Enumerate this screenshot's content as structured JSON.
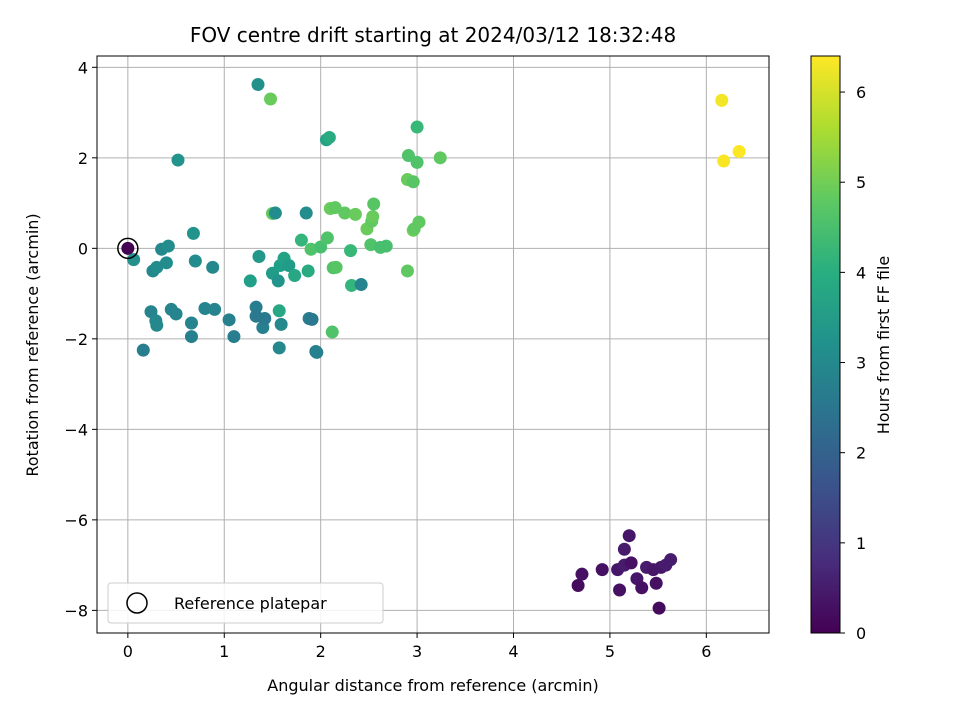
{
  "chart_data": {
    "type": "scatter",
    "title": "FOV centre drift starting at 2024/03/12 18:32:48",
    "xlabel": "Angular distance from reference (arcmin)",
    "ylabel": "Rotation from reference (arcmin)",
    "xlim": [
      -0.32,
      6.65
    ],
    "ylim": [
      -8.5,
      4.25
    ],
    "xticks": [
      0,
      1,
      2,
      3,
      4,
      5,
      6
    ],
    "xtick_labels": [
      "0",
      "1",
      "2",
      "3",
      "4",
      "5",
      "6"
    ],
    "yticks": [
      -8,
      -6,
      -4,
      -2,
      0,
      2,
      4
    ],
    "ytick_labels": [
      "−8",
      "−6",
      "−4",
      "−2",
      "0",
      "2",
      "4"
    ],
    "grid": true,
    "colorbar": {
      "label": "Hours from first FF file",
      "colormap": "viridis",
      "range": [
        0,
        6.4
      ],
      "ticks": [
        0,
        1,
        2,
        3,
        4,
        5,
        6
      ],
      "tick_labels": [
        "0",
        "1",
        "2",
        "3",
        "4",
        "5",
        "6"
      ]
    },
    "legend": {
      "placement": "lower-left",
      "entries": [
        "Reference platepar"
      ]
    },
    "reference_point": {
      "x": 0,
      "y": 0,
      "c": 0.0
    },
    "series": [
      {
        "points": [
          {
            "x": 4.67,
            "y": -7.45,
            "c": 0.2
          },
          {
            "x": 4.71,
            "y": -7.2,
            "c": 0.3
          },
          {
            "x": 4.92,
            "y": -7.1,
            "c": 0.3
          },
          {
            "x": 5.08,
            "y": -7.1,
            "c": 0.4
          },
          {
            "x": 5.1,
            "y": -7.55,
            "c": 0.3
          },
          {
            "x": 5.15,
            "y": -7.0,
            "c": 0.5
          },
          {
            "x": 5.15,
            "y": -6.65,
            "c": 0.5
          },
          {
            "x": 5.2,
            "y": -6.35,
            "c": 0.4
          },
          {
            "x": 5.22,
            "y": -6.95,
            "c": 0.3
          },
          {
            "x": 5.28,
            "y": -7.3,
            "c": 0.4
          },
          {
            "x": 5.33,
            "y": -7.5,
            "c": 0.3
          },
          {
            "x": 5.38,
            "y": -7.05,
            "c": 0.5
          },
          {
            "x": 5.45,
            "y": -7.1,
            "c": 0.4
          },
          {
            "x": 5.48,
            "y": -7.4,
            "c": 0.3
          },
          {
            "x": 5.51,
            "y": -7.95,
            "c": 0.2
          },
          {
            "x": 5.53,
            "y": -7.05,
            "c": 0.4
          },
          {
            "x": 5.58,
            "y": -7.0,
            "c": 0.5
          },
          {
            "x": 5.63,
            "y": -6.88,
            "c": 0.5
          },
          {
            "x": 0.06,
            "y": -0.25,
            "c": 3.2
          },
          {
            "x": 0.16,
            "y": -2.25,
            "c": 2.7
          },
          {
            "x": 0.24,
            "y": -1.4,
            "c": 2.9
          },
          {
            "x": 0.26,
            "y": -0.5,
            "c": 3.0
          },
          {
            "x": 0.3,
            "y": -0.42,
            "c": 3.1
          },
          {
            "x": 0.29,
            "y": -1.6,
            "c": 3.0
          },
          {
            "x": 0.3,
            "y": -1.7,
            "c": 3.0
          },
          {
            "x": 0.35,
            "y": -0.02,
            "c": 3.0
          },
          {
            "x": 0.4,
            "y": -0.32,
            "c": 3.1
          },
          {
            "x": 0.42,
            "y": 0.05,
            "c": 3.1
          },
          {
            "x": 0.45,
            "y": -1.35,
            "c": 2.9
          },
          {
            "x": 0.5,
            "y": -1.45,
            "c": 2.9
          },
          {
            "x": 0.52,
            "y": 1.95,
            "c": 3.3
          },
          {
            "x": 0.66,
            "y": -1.65,
            "c": 2.9
          },
          {
            "x": 0.66,
            "y": -1.95,
            "c": 2.8
          },
          {
            "x": 0.68,
            "y": 0.33,
            "c": 3.3
          },
          {
            "x": 0.7,
            "y": -0.28,
            "c": 3.1
          },
          {
            "x": 0.8,
            "y": -1.33,
            "c": 2.9
          },
          {
            "x": 0.88,
            "y": -0.42,
            "c": 3.0
          },
          {
            "x": 0.9,
            "y": -1.35,
            "c": 2.9
          },
          {
            "x": 1.05,
            "y": -1.58,
            "c": 2.8
          },
          {
            "x": 1.1,
            "y": -1.95,
            "c": 2.7
          },
          {
            "x": 1.27,
            "y": -0.72,
            "c": 3.6
          },
          {
            "x": 1.33,
            "y": -1.3,
            "c": 2.7
          },
          {
            "x": 1.33,
            "y": -1.5,
            "c": 2.6
          },
          {
            "x": 1.35,
            "y": 3.62,
            "c": 3.2
          },
          {
            "x": 1.36,
            "y": -0.18,
            "c": 3.4
          },
          {
            "x": 1.4,
            "y": -1.75,
            "c": 2.8
          },
          {
            "x": 1.42,
            "y": -1.55,
            "c": 2.6
          },
          {
            "x": 1.48,
            "y": 3.3,
            "c": 4.9
          },
          {
            "x": 1.5,
            "y": 0.77,
            "c": 4.8
          },
          {
            "x": 1.5,
            "y": -0.55,
            "c": 3.5
          },
          {
            "x": 1.53,
            "y": 0.78,
            "c": 3.1
          },
          {
            "x": 1.56,
            "y": -0.72,
            "c": 3.3
          },
          {
            "x": 1.57,
            "y": -1.38,
            "c": 3.8
          },
          {
            "x": 1.57,
            "y": -2.2,
            "c": 3.0
          },
          {
            "x": 1.58,
            "y": -0.38,
            "c": 3.6
          },
          {
            "x": 1.59,
            "y": -1.68,
            "c": 3.0
          },
          {
            "x": 1.62,
            "y": -0.22,
            "c": 3.7
          },
          {
            "x": 1.67,
            "y": -0.38,
            "c": 3.5
          },
          {
            "x": 1.73,
            "y": -0.6,
            "c": 3.8
          },
          {
            "x": 1.8,
            "y": 0.18,
            "c": 4.2
          },
          {
            "x": 1.85,
            "y": 0.78,
            "c": 3.1
          },
          {
            "x": 1.87,
            "y": -0.5,
            "c": 3.9
          },
          {
            "x": 1.88,
            "y": -1.55,
            "c": 2.7
          },
          {
            "x": 1.91,
            "y": -1.57,
            "c": 2.6
          },
          {
            "x": 1.9,
            "y": -0.02,
            "c": 4.6
          },
          {
            "x": 1.95,
            "y": -2.28,
            "c": 2.7
          },
          {
            "x": 1.96,
            "y": -2.3,
            "c": 2.8
          },
          {
            "x": 2.0,
            "y": 0.03,
            "c": 4.5
          },
          {
            "x": 2.06,
            "y": 2.4,
            "c": 3.7
          },
          {
            "x": 2.07,
            "y": 0.23,
            "c": 4.6
          },
          {
            "x": 2.09,
            "y": 2.45,
            "c": 3.9
          },
          {
            "x": 2.1,
            "y": 0.88,
            "c": 4.9
          },
          {
            "x": 2.12,
            "y": -1.85,
            "c": 4.6
          },
          {
            "x": 2.13,
            "y": -0.43,
            "c": 4.6
          },
          {
            "x": 2.15,
            "y": 0.9,
            "c": 4.8
          },
          {
            "x": 2.16,
            "y": -0.42,
            "c": 4.7
          },
          {
            "x": 2.25,
            "y": 0.78,
            "c": 4.8
          },
          {
            "x": 2.31,
            "y": -0.05,
            "c": 4.3
          },
          {
            "x": 2.32,
            "y": -0.82,
            "c": 4.2
          },
          {
            "x": 2.36,
            "y": 0.75,
            "c": 4.9
          },
          {
            "x": 2.42,
            "y": -0.8,
            "c": 2.9
          },
          {
            "x": 2.48,
            "y": 0.43,
            "c": 4.9
          },
          {
            "x": 2.52,
            "y": 0.08,
            "c": 4.6
          },
          {
            "x": 2.53,
            "y": 0.6,
            "c": 4.8
          },
          {
            "x": 2.54,
            "y": 0.7,
            "c": 4.9
          },
          {
            "x": 2.55,
            "y": 0.98,
            "c": 4.7
          },
          {
            "x": 2.62,
            "y": 0.02,
            "c": 4.5
          },
          {
            "x": 2.68,
            "y": 0.05,
            "c": 4.5
          },
          {
            "x": 2.9,
            "y": 1.52,
            "c": 4.9
          },
          {
            "x": 2.9,
            "y": -0.5,
            "c": 4.8
          },
          {
            "x": 2.91,
            "y": 2.05,
            "c": 4.6
          },
          {
            "x": 2.96,
            "y": 1.47,
            "c": 4.7
          },
          {
            "x": 2.96,
            "y": 0.4,
            "c": 5.0
          },
          {
            "x": 2.97,
            "y": 0.43,
            "c": 4.8
          },
          {
            "x": 3.0,
            "y": 2.68,
            "c": 4.3
          },
          {
            "x": 3.0,
            "y": 1.9,
            "c": 4.6
          },
          {
            "x": 3.02,
            "y": 0.58,
            "c": 4.8
          },
          {
            "x": 3.24,
            "y": 2.0,
            "c": 4.8
          },
          {
            "x": 6.16,
            "y": 3.27,
            "c": 6.3
          },
          {
            "x": 6.18,
            "y": 1.93,
            "c": 6.35
          },
          {
            "x": 6.34,
            "y": 2.14,
            "c": 6.4
          }
        ]
      }
    ]
  }
}
